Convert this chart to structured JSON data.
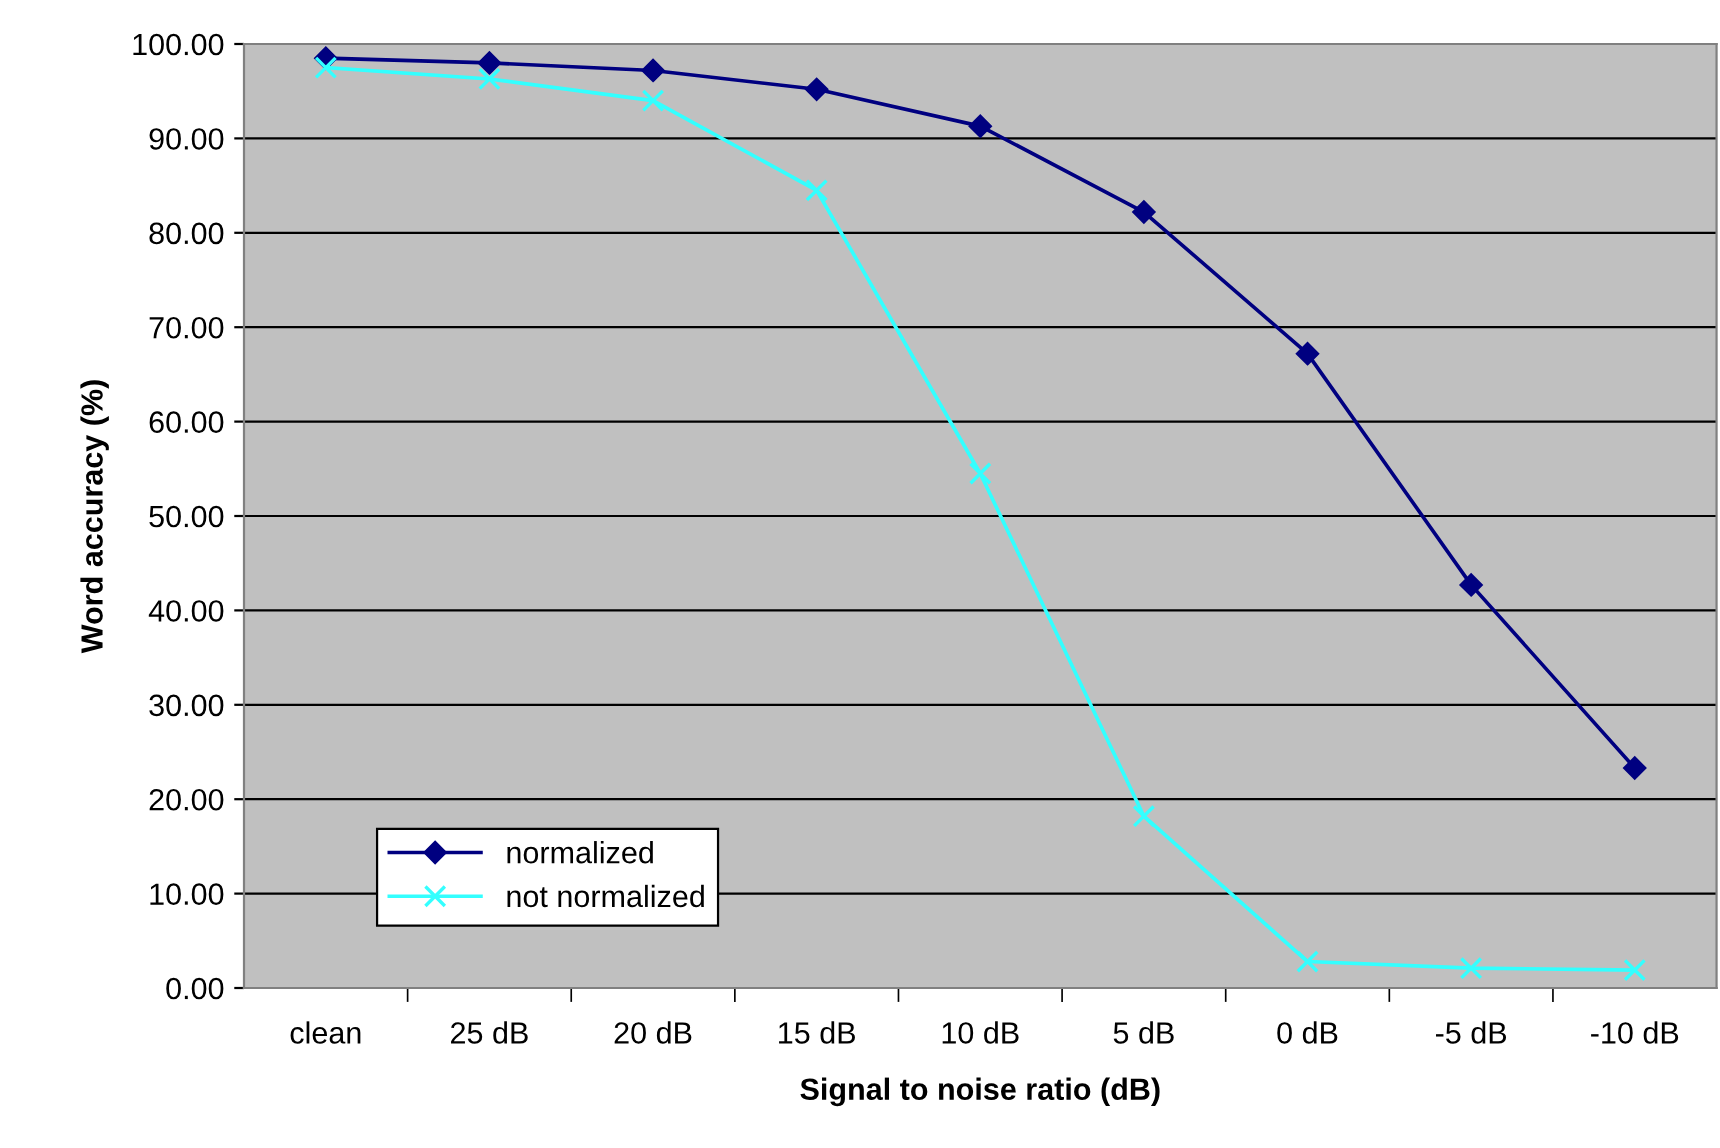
{
  "chart_data": {
    "type": "line",
    "xlabel": "Signal to noise ratio (dB)",
    "ylabel": "Word accuracy (%)",
    "categories": [
      "clean",
      "25 dB",
      "20 dB",
      "15 dB",
      "10 dB",
      "5 dB",
      "0 dB",
      "-5 dB",
      "-10 dB"
    ],
    "series": [
      {
        "name": "normalized",
        "color": "#000080",
        "marker": "diamond",
        "values": [
          98.5,
          98.0,
          97.2,
          95.2,
          91.3,
          82.2,
          67.2,
          42.7,
          23.3
        ]
      },
      {
        "name": "not normalized",
        "color": "#33ffff",
        "marker": "cross",
        "values": [
          97.5,
          96.3,
          94.0,
          84.5,
          54.5,
          18.2,
          2.8,
          2.1,
          1.9
        ]
      }
    ],
    "ylim": [
      0,
      100
    ],
    "yticks": [
      {
        "value": 0,
        "label": "0.00"
      },
      {
        "value": 10,
        "label": "10.00"
      },
      {
        "value": 20,
        "label": "20.00"
      },
      {
        "value": 30,
        "label": "30.00"
      },
      {
        "value": 40,
        "label": "40.00"
      },
      {
        "value": 50,
        "label": "50.00"
      },
      {
        "value": 60,
        "label": "60.00"
      },
      {
        "value": 70,
        "label": "70.00"
      },
      {
        "value": 80,
        "label": "80.00"
      },
      {
        "value": 90,
        "label": "90.00"
      },
      {
        "value": 100,
        "label": "100.00"
      }
    ],
    "grid": "y",
    "legend": "bottom left"
  }
}
